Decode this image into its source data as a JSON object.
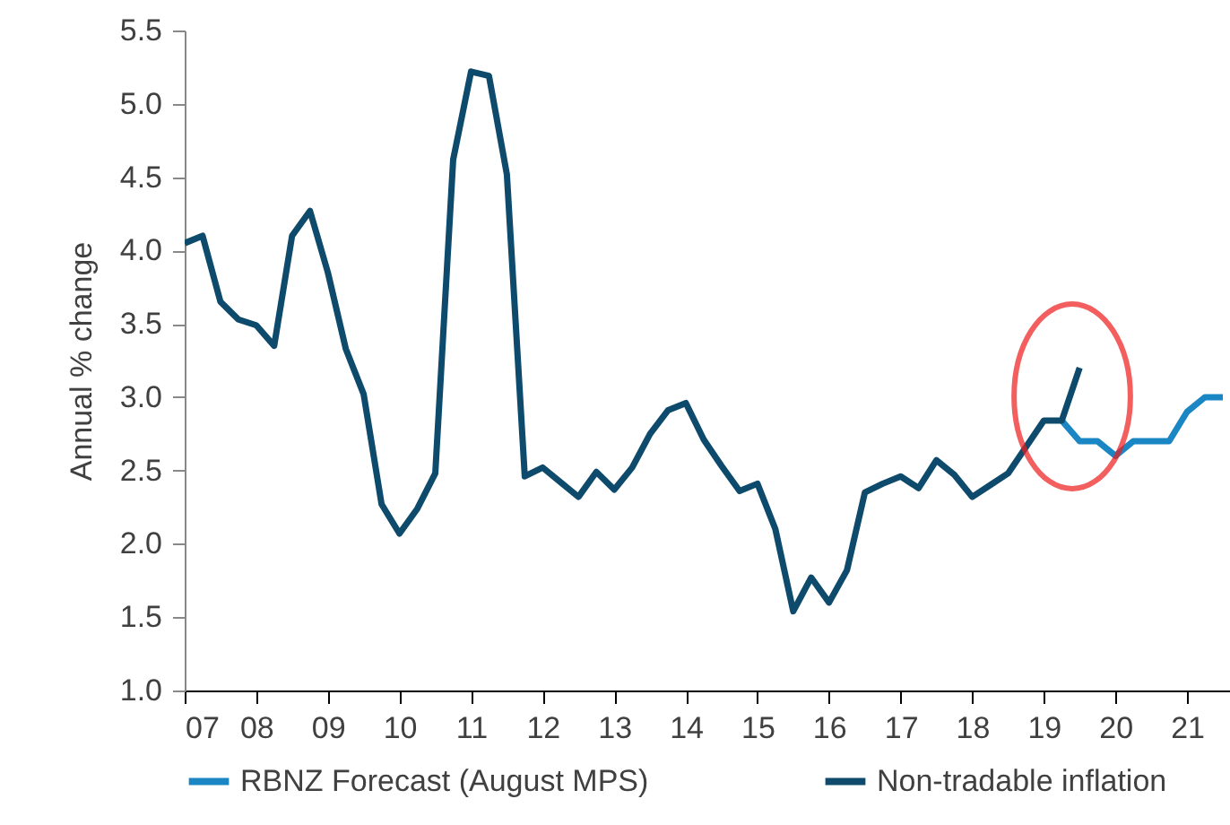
{
  "chart_data": {
    "type": "line",
    "ylabel": "Annual % change",
    "series": [
      {
        "name": "RBNZ Forecast (August MPS)",
        "color": "#1a87c4",
        "x": [
          19.25,
          19.5,
          19.75,
          20.0,
          20.25,
          20.5,
          20.75,
          21.0,
          21.25,
          21.5
        ],
        "values": [
          2.84,
          2.7,
          2.7,
          2.6,
          2.7,
          2.7,
          2.7,
          2.9,
          3.0,
          3.0
        ]
      },
      {
        "name": "Non-tradable inflation",
        "color": "#0d4a6b",
        "x": [
          7.0,
          7.25,
          7.5,
          7.75,
          8.0,
          8.25,
          8.5,
          8.75,
          9.0,
          9.25,
          9.5,
          9.75,
          10.0,
          10.25,
          10.5,
          10.75,
          11.0,
          11.25,
          11.5,
          11.75,
          12.0,
          12.25,
          12.5,
          12.75,
          13.0,
          13.25,
          13.5,
          13.75,
          14.0,
          14.25,
          14.5,
          14.75,
          15.0,
          15.25,
          15.5,
          15.75,
          16.0,
          16.25,
          16.5,
          16.75,
          17.0,
          17.25,
          17.5,
          17.75,
          18.0,
          18.25,
          18.5,
          18.75,
          19.0,
          19.25,
          19.5
        ],
        "values": [
          4.05,
          4.1,
          3.65,
          3.53,
          3.49,
          3.35,
          4.1,
          4.27,
          3.85,
          3.33,
          3.02,
          2.27,
          2.07,
          2.24,
          2.48,
          4.62,
          5.22,
          5.19,
          4.52,
          2.46,
          2.52,
          2.42,
          2.32,
          2.49,
          2.37,
          2.52,
          2.75,
          2.91,
          2.96,
          2.71,
          2.53,
          2.36,
          2.41,
          2.1,
          1.54,
          1.77,
          1.6,
          1.82,
          2.35,
          2.41,
          2.46,
          2.38,
          2.57,
          2.47,
          2.32,
          2.4,
          2.48,
          2.66,
          2.84,
          2.84,
          3.2
        ]
      }
    ],
    "xlim": [
      7,
      21.6
    ],
    "xticks": [
      {
        "value": 7,
        "label": "07"
      },
      {
        "value": 8,
        "label": "08"
      },
      {
        "value": 9,
        "label": "09"
      },
      {
        "value": 10,
        "label": "10"
      },
      {
        "value": 11,
        "label": "11"
      },
      {
        "value": 12,
        "label": "12"
      },
      {
        "value": 13,
        "label": "13"
      },
      {
        "value": 14,
        "label": "14"
      },
      {
        "value": 15,
        "label": "15"
      },
      {
        "value": 16,
        "label": "16"
      },
      {
        "value": 17,
        "label": "17"
      },
      {
        "value": 18,
        "label": "18"
      },
      {
        "value": 19,
        "label": "19"
      },
      {
        "value": 20,
        "label": "20"
      },
      {
        "value": 21,
        "label": "21"
      }
    ],
    "ylim": [
      1.0,
      5.5
    ],
    "yticks": [
      {
        "value": 1.0,
        "label": "1.0"
      },
      {
        "value": 1.5,
        "label": "1.5"
      },
      {
        "value": 2.0,
        "label": "2.0"
      },
      {
        "value": 2.5,
        "label": "2.5"
      },
      {
        "value": 3.0,
        "label": "3.0"
      },
      {
        "value": 3.5,
        "label": "3.5"
      },
      {
        "value": 4.0,
        "label": "4.0"
      },
      {
        "value": 4.5,
        "label": "4.5"
      },
      {
        "value": 5.0,
        "label": "5.0"
      },
      {
        "value": 5.5,
        "label": "5.5"
      }
    ],
    "grid": false,
    "legend": "bottom",
    "marker": "none",
    "line_style": "solid"
  }
}
